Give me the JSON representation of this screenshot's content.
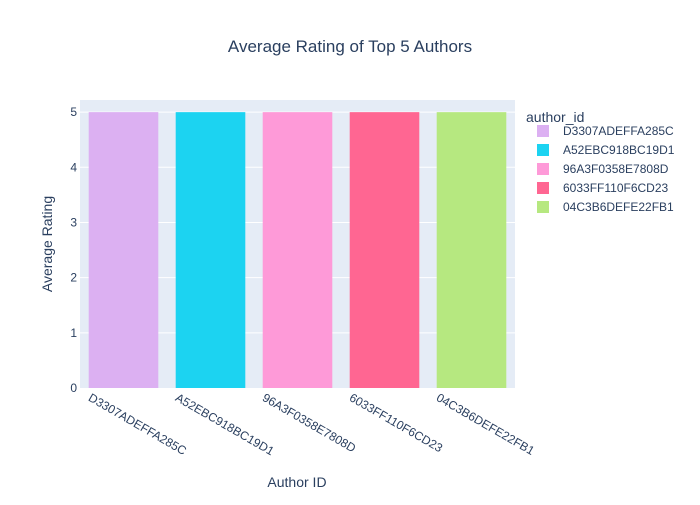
{
  "chart_data": {
    "type": "bar",
    "title": "Average Rating of Top 5 Authors",
    "xlabel": "Author ID",
    "ylabel": "Average Rating",
    "categories": [
      "D3307ADEFFA285C",
      "A52EBC918BC19D1",
      "96A3F0358E7808D",
      "6033FF110F6CD23",
      "04C3B6DEFE22FB1"
    ],
    "values": [
      5,
      5,
      5,
      5,
      5
    ],
    "colors": [
      "#dcb0f2",
      "#1cd3f1",
      "#fe9ad8",
      "#ff6692",
      "#b6e880"
    ],
    "ylim": [
      0,
      5.22
    ],
    "yticks": [
      0,
      1,
      2,
      3,
      4,
      5
    ],
    "grid": true,
    "legend": {
      "title": "author_id",
      "position": "right",
      "entries": [
        "D3307ADEFFA285C",
        "A52EBC918BC19D1",
        "96A3F0358E7808D",
        "6033FF110F6CD23",
        "04C3B6DEFE22FB1"
      ]
    }
  }
}
